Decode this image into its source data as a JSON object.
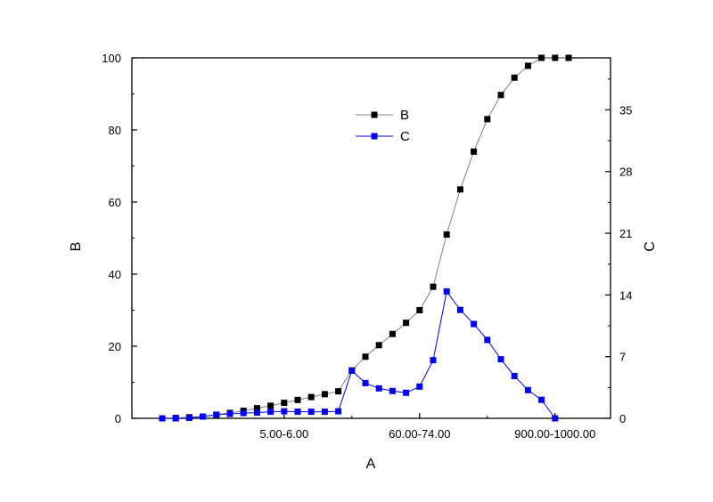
{
  "chart_data": {
    "type": "line",
    "title": "",
    "xlabel": "A",
    "ylabel_left": "B",
    "ylabel_right": "C",
    "x_tick_labels": [
      {
        "label": "5.00-6.00",
        "index": 9
      },
      {
        "label": "60.00-74.00",
        "index": 19
      },
      {
        "label": "900.00-1000.00",
        "index": 29
      }
    ],
    "ylim_left": [
      0,
      100
    ],
    "yticks_left": [
      0,
      20,
      40,
      60,
      80,
      100
    ],
    "ylim_right": [
      0,
      40.9
    ],
    "yticks_right": [
      0,
      7,
      14,
      21,
      28,
      35
    ],
    "legend_position": "upper-middle",
    "grid": false,
    "series": [
      {
        "name": "B",
        "axis": "left",
        "color": "#000000",
        "line_color": "#808080",
        "marker": "square",
        "x": [
          0,
          1,
          2,
          3,
          4,
          5,
          6,
          7,
          8,
          9,
          10,
          11,
          12,
          13,
          14,
          15,
          16,
          17,
          18,
          19,
          20,
          21,
          22,
          23,
          24,
          25,
          26,
          27,
          28,
          29,
          30
        ],
        "values": [
          0,
          0.1,
          0.3,
          0.5,
          1.0,
          1.5,
          2.1,
          2.8,
          3.5,
          4.3,
          5.1,
          5.9,
          6.7,
          7.5,
          13.3,
          17.1,
          20.3,
          23.4,
          26.5,
          30.0,
          36.5,
          51.0,
          63.5,
          74.0,
          83.0,
          89.7,
          94.5,
          97.8,
          100,
          100,
          100
        ]
      },
      {
        "name": "C",
        "axis": "right",
        "color": "#0000ee",
        "line_color": "#0000ee",
        "marker": "square",
        "x": [
          0,
          1,
          2,
          3,
          4,
          5,
          6,
          7,
          8,
          9,
          10,
          11,
          12,
          13,
          14,
          15,
          16,
          17,
          18,
          19,
          20,
          21,
          22,
          23,
          24,
          25,
          26,
          27,
          28,
          29
        ],
        "values": [
          0,
          0,
          0.05,
          0.2,
          0.4,
          0.5,
          0.6,
          0.65,
          0.75,
          0.8,
          0.75,
          0.75,
          0.75,
          0.8,
          5.4,
          4.0,
          3.4,
          3.1,
          2.9,
          3.6,
          6.6,
          14.4,
          12.3,
          10.7,
          8.9,
          6.7,
          4.8,
          3.2,
          2.1,
          0
        ]
      }
    ]
  }
}
